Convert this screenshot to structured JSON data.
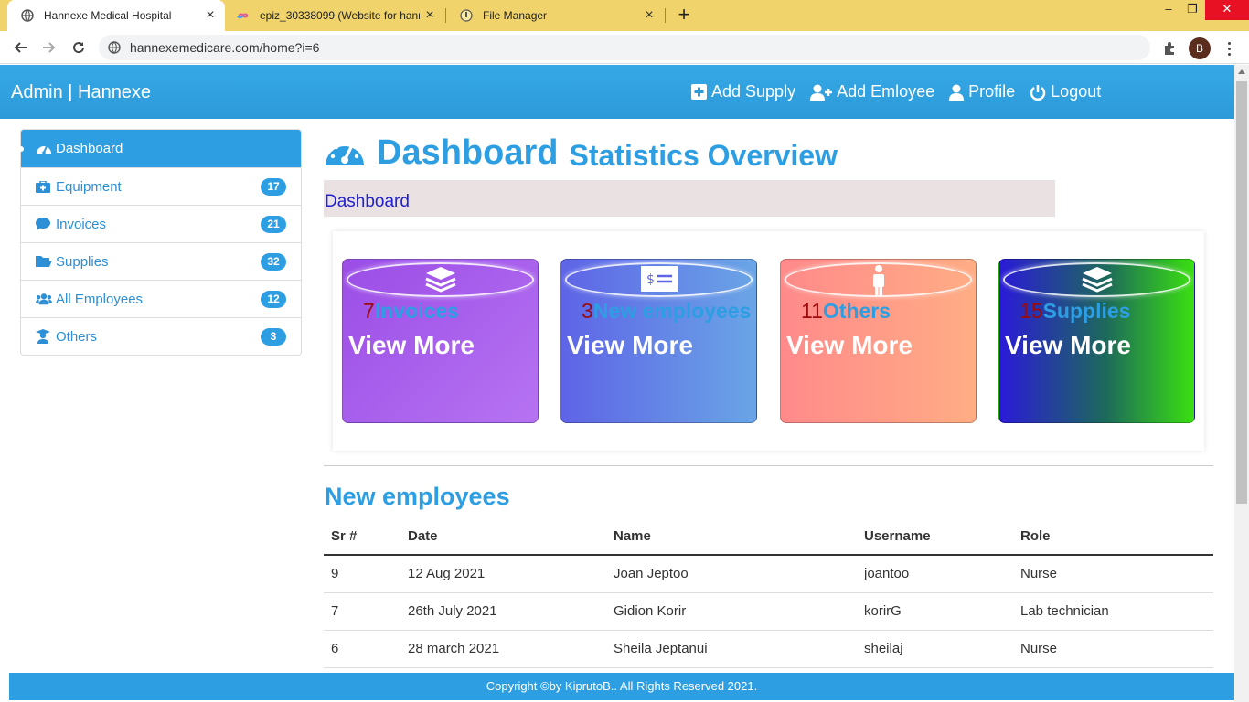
{
  "browser": {
    "tabs": [
      {
        "title": "Hannexe Medical Hospital",
        "icon": "globe-icon"
      },
      {
        "title": "epiz_30338099 (Website for hann",
        "icon": "infinity-icon"
      },
      {
        "title": "File Manager",
        "icon": "file-manager-icon"
      }
    ],
    "url": "hannexemedicare.com/home?i=6",
    "account_initial": "B"
  },
  "header": {
    "brand": "Admin | Hannexe",
    "nav": [
      {
        "label": "Add Supply",
        "icon": "plus-square-icon"
      },
      {
        "label": "Add Emloyee",
        "icon": "user-plus-icon"
      },
      {
        "label": "Profile",
        "icon": "user-icon"
      },
      {
        "label": "Logout",
        "icon": "power-icon"
      }
    ]
  },
  "sidebar": {
    "items": [
      {
        "label": "Dashboard",
        "icon": "gauge-icon",
        "active": true
      },
      {
        "label": "Equipment",
        "icon": "medkit-icon",
        "count": "17"
      },
      {
        "label": "Invoices",
        "icon": "comment-icon",
        "count": "21"
      },
      {
        "label": "Supplies",
        "icon": "folder-open-icon",
        "count": "32"
      },
      {
        "label": "All Employees",
        "icon": "users-icon",
        "count": "12"
      },
      {
        "label": "Others",
        "icon": "user-graduate-icon",
        "count": "3"
      }
    ]
  },
  "main": {
    "title": "Dashboard",
    "subtitle": "Statistics Overview",
    "breadcrumb": "Dashboard",
    "cards": [
      {
        "count": "7",
        "label": "Invoices",
        "action": "View More",
        "icon": "layers-icon",
        "colors": [
          "#9b4de6",
          "#b673f2"
        ]
      },
      {
        "count": "3",
        "label": "New employees",
        "action": "View More",
        "icon": "money-check-icon",
        "colors": [
          "#5e64e6",
          "#6aa5e6"
        ]
      },
      {
        "count": "11",
        "label": "Others",
        "action": "View More",
        "icon": "person-icon",
        "colors": [
          "#ff8a8a",
          "#ffad85"
        ]
      },
      {
        "count": "15",
        "label": "Supplies",
        "action": "View More",
        "icon": "layers-icon",
        "colors": [
          "#2a1ad8",
          "#3ae010"
        ]
      }
    ],
    "employees_section": {
      "title": "New employees",
      "columns": [
        "Sr #",
        "Date",
        "Name",
        "Username",
        "Role"
      ],
      "rows": [
        [
          "9",
          "12 Aug 2021",
          "Joan Jeptoo",
          "joantoo",
          "Nurse"
        ],
        [
          "7",
          "26th July 2021",
          "Gidion Korir",
          "korirG",
          "Lab technician"
        ],
        [
          "6",
          "28 march 2021",
          "Sheila Jeptanui",
          "sheilaj",
          "Nurse"
        ]
      ]
    }
  },
  "footer": {
    "text": "Copyright ©by KiprutoB.. All Rights Reserved 2021."
  },
  "colors": {
    "primary": "#2e9ee3",
    "tabbar": "#f1d36b",
    "breadcrumb_bg": "#eae2e2",
    "count_red": "#9c0a0a"
  }
}
